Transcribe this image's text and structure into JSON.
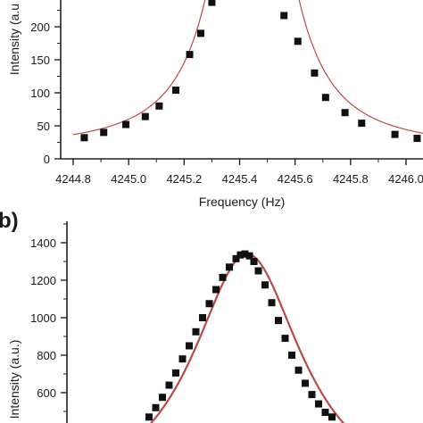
{
  "chart_data": [
    {
      "type": "scatter",
      "panel_label": "",
      "xlabel": "Frequency (Hz)",
      "ylabel": "Intensity (a.u",
      "xlim": [
        4244.8,
        4246.1
      ],
      "ylim": [
        0,
        250
      ],
      "x_ticks": [
        "4244.8",
        "4245.0",
        "4245.2",
        "4245.4",
        "4245.6",
        "4245.8",
        "4246.0"
      ],
      "x_tick_values": [
        4244.8,
        4245.0,
        4245.2,
        4245.4,
        4245.6,
        4245.8,
        4246.0
      ],
      "y_ticks": [
        "0",
        "50",
        "100",
        "150",
        "200"
      ],
      "y_tick_values": [
        0,
        50,
        100,
        150,
        200
      ],
      "marker_color": "#111111",
      "fit_color": "#b94a48",
      "series": [
        {
          "kind": "markers",
          "x": [
            4244.84,
            4244.91,
            4244.99,
            4245.06,
            4245.11,
            4245.17,
            4245.22,
            4245.26,
            4245.3,
            4245.56,
            4245.61,
            4245.67,
            4245.71,
            4245.78,
            4245.84,
            4245.96,
            4246.04
          ],
          "y": [
            32,
            40,
            52,
            64,
            80,
            104,
            158,
            190,
            237,
            217,
            178,
            130,
            93,
            70,
            54,
            37,
            31
          ]
        },
        {
          "kind": "fit",
          "model": "lorentzian",
          "center": 4245.445,
          "hwhm": 0.12,
          "amplitude": 680,
          "offset": 14
        }
      ]
    },
    {
      "type": "scatter",
      "panel_label": "b)",
      "xlabel": "",
      "ylabel": "Intensity (a.u.)",
      "ylim": [
        0,
        1500
      ],
      "y_ticks": [
        "600",
        "800",
        "1000",
        "1200",
        "1400"
      ],
      "y_tick_values": [
        600,
        800,
        1000,
        1200,
        1400
      ],
      "marker_color": "#111111",
      "fit_color": "#b94a48",
      "series": [
        {
          "kind": "markers",
          "x": [
            -0.44,
            -0.41,
            -0.38,
            -0.35,
            -0.32,
            -0.29,
            -0.26,
            -0.23,
            -0.2,
            -0.17,
            -0.14,
            -0.11,
            -0.08,
            -0.05,
            -0.03,
            -0.01,
            0.01,
            0.03,
            0.05,
            0.08,
            0.11,
            0.14,
            0.17,
            0.2,
            0.23,
            0.26,
            0.29,
            0.32,
            0.35,
            0.38
          ],
          "y": [
            470,
            520,
            575,
            640,
            705,
            780,
            850,
            925,
            1000,
            1075,
            1150,
            1215,
            1270,
            1315,
            1335,
            1340,
            1330,
            1300,
            1250,
            1175,
            1080,
            985,
            890,
            800,
            720,
            650,
            590,
            540,
            495,
            470
          ]
        },
        {
          "kind": "fit",
          "model": "lorentzian",
          "center": 0,
          "hwhm": 0.3,
          "amplitude": 1340,
          "offset": 0
        }
      ]
    }
  ]
}
